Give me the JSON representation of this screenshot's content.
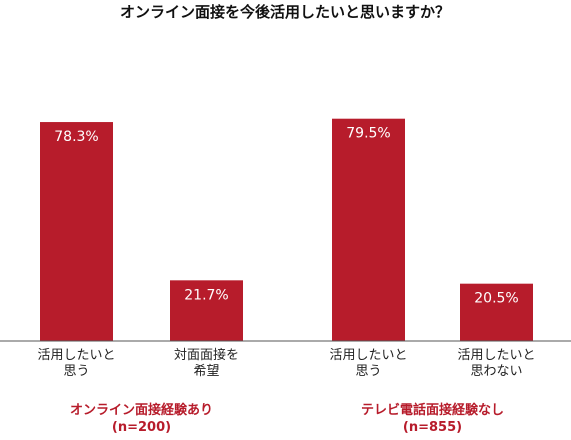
{
  "colors": {
    "bar": "#b71c2b",
    "group_label": "#b71c2b",
    "baseline": "#555555"
  },
  "chart_data": {
    "type": "bar",
    "title": "オンライン面接を今後活用したいと思いますか？",
    "ylim": [
      0,
      100
    ],
    "grid": false,
    "groups": [
      {
        "label": "オンライン面接経験あり",
        "n": "(n=200)",
        "bars": [
          {
            "category": [
              "活用したいと",
              "思う"
            ],
            "value": 78.3,
            "label": "78.3%"
          },
          {
            "category": [
              "対面面接を",
              "希望"
            ],
            "value": 21.7,
            "label": "21.7%"
          }
        ]
      },
      {
        "label": "テレビ電話面接経験なし",
        "n": "(n=855)",
        "bars": [
          {
            "category": [
              "活用したいと",
              "思う"
            ],
            "value": 79.5,
            "label": "79.5%"
          },
          {
            "category": [
              "活用したいと",
              "思わない"
            ],
            "value": 20.5,
            "label": "20.5%"
          }
        ]
      }
    ]
  }
}
